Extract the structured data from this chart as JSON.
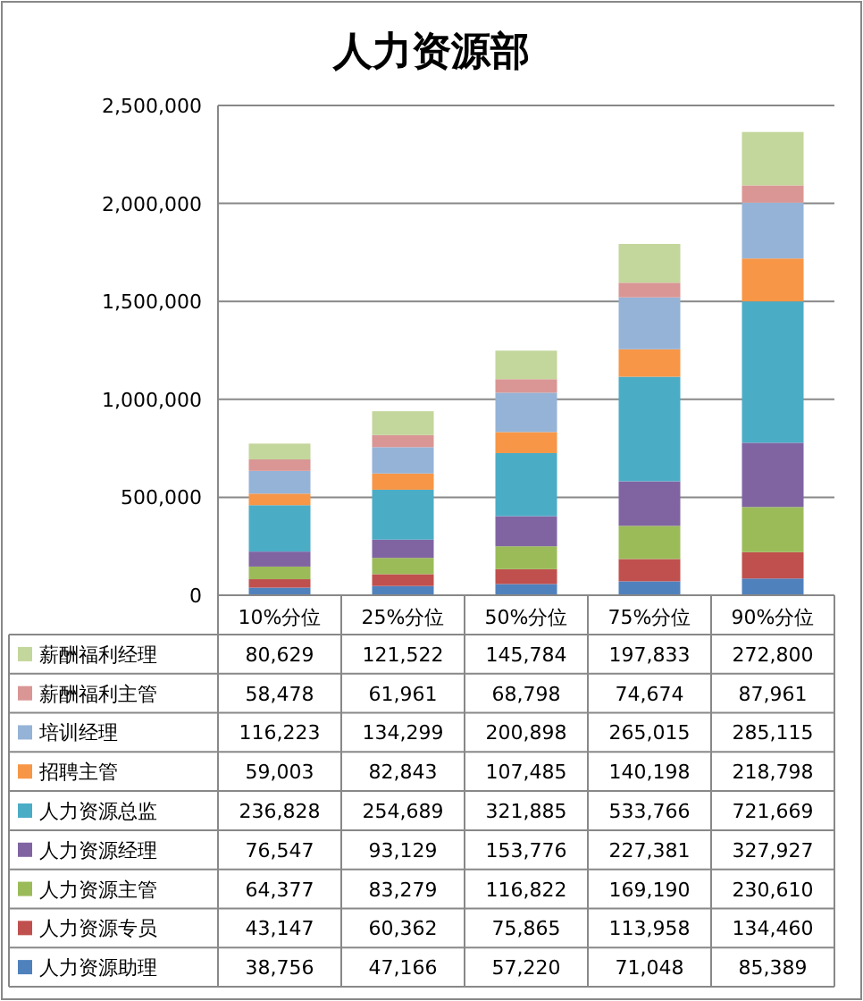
{
  "chart_data": {
    "type": "bar",
    "title": "人力资源部",
    "stacked": true,
    "categories": [
      "10%分位",
      "25%分位",
      "50%分位",
      "75%分位",
      "90%分位"
    ],
    "ylim": [
      0,
      2500000
    ],
    "yticks": [
      0,
      {
        "value": 500000,
        "label": "500,000"
      },
      {
        "value": 1000000,
        "label": "1,000,000"
      },
      {
        "value": 1500000,
        "label": "1,500,000"
      },
      {
        "value": 2000000,
        "label": "2,000,000"
      },
      {
        "value": 2500000,
        "label": "2,500,000"
      }
    ],
    "grid": "y",
    "legend": "bottom",
    "series": [
      {
        "name": "人力资源助理",
        "color": "#4f81bd",
        "values": [
          38756,
          47166,
          57220,
          71048,
          85389
        ],
        "value_labels": [
          "38,756",
          "47,166",
          "57,220",
          "71,048",
          "85,389"
        ]
      },
      {
        "name": "人力资源专员",
        "color": "#c0504d",
        "values": [
          43147,
          60362,
          75865,
          113958,
          134460
        ],
        "value_labels": [
          "43,147",
          "60,362",
          "75,865",
          "113,958",
          "134,460"
        ]
      },
      {
        "name": "人力资源主管",
        "color": "#9bbb59",
        "values": [
          64377,
          83279,
          116822,
          169190,
          230610
        ],
        "value_labels": [
          "64,377",
          "83,279",
          "116,822",
          "169,190",
          "230,610"
        ]
      },
      {
        "name": "人力资源经理",
        "color": "#8064a2",
        "values": [
          76547,
          93129,
          153776,
          227381,
          327927
        ],
        "value_labels": [
          "76,547",
          "93,129",
          "153,776",
          "227,381",
          "327,927"
        ]
      },
      {
        "name": "人力资源总监",
        "color": "#4bacc6",
        "values": [
          236828,
          254689,
          321885,
          533766,
          721669
        ],
        "value_labels": [
          "236,828",
          "254,689",
          "321,885",
          "533,766",
          "721,669"
        ]
      },
      {
        "name": "招聘主管",
        "color": "#f79646",
        "values": [
          59003,
          82843,
          107485,
          140198,
          218798
        ],
        "value_labels": [
          "59,003",
          "82,843",
          "107,485",
          "140,198",
          "218,798"
        ]
      },
      {
        "name": "培训经理",
        "color": "#95b3d7",
        "values": [
          116223,
          134299,
          200898,
          265015,
          285115
        ],
        "value_labels": [
          "116,223",
          "134,299",
          "200,898",
          "265,015",
          "285,115"
        ]
      },
      {
        "name": "薪酬福利主管",
        "color": "#d99694",
        "values": [
          58478,
          61961,
          68798,
          74674,
          87961
        ],
        "value_labels": [
          "58,478",
          "61,961",
          "68,798",
          "74,674",
          "87,961"
        ]
      },
      {
        "name": "薪酬福利经理",
        "color": "#c3d69b",
        "values": [
          80629,
          121522,
          145784,
          197833,
          272800
        ],
        "value_labels": [
          "80,629",
          "121,522",
          "145,784",
          "197,833",
          "272,800"
        ]
      }
    ]
  }
}
